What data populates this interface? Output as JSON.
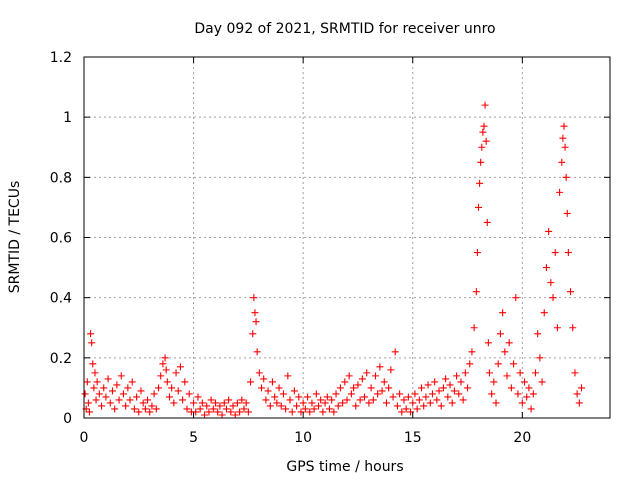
{
  "chart_data": {
    "type": "scatter",
    "title": "Day 092 of 2021, SRMTID for receiver unro",
    "xlabel": "GPS time / hours",
    "ylabel": "SRMTID / TECUs",
    "xlim": [
      0,
      24
    ],
    "ylim": [
      0,
      1.2
    ],
    "x_ticks": [
      0,
      5,
      10,
      15,
      20
    ],
    "x_tick_labels": [
      "0",
      "5",
      "10",
      "15",
      "20"
    ],
    "y_ticks": [
      0,
      0.2,
      0.4,
      0.6,
      0.8,
      1.0,
      1.2
    ],
    "y_tick_labels": [
      "0",
      "0.2",
      "0.4",
      "0.6",
      "0.8",
      "1",
      "1.2"
    ],
    "grid": true,
    "marker": "+",
    "marker_color": "#ff0000",
    "series": [
      {
        "name": "SRMTID",
        "points": [
          [
            0.05,
            0.08
          ],
          [
            0.1,
            0.03
          ],
          [
            0.15,
            0.12
          ],
          [
            0.2,
            0.05
          ],
          [
            0.25,
            0.02
          ],
          [
            0.3,
            0.28
          ],
          [
            0.35,
            0.25
          ],
          [
            0.4,
            0.18
          ],
          [
            0.45,
            0.1
          ],
          [
            0.5,
            0.15
          ],
          [
            0.55,
            0.06
          ],
          [
            0.6,
            0.12
          ],
          [
            0.7,
            0.08
          ],
          [
            0.8,
            0.04
          ],
          [
            0.9,
            0.1
          ],
          [
            1.0,
            0.07
          ],
          [
            1.1,
            0.13
          ],
          [
            1.2,
            0.05
          ],
          [
            1.3,
            0.09
          ],
          [
            1.4,
            0.03
          ],
          [
            1.5,
            0.11
          ],
          [
            1.6,
            0.06
          ],
          [
            1.7,
            0.14
          ],
          [
            1.8,
            0.08
          ],
          [
            1.9,
            0.04
          ],
          [
            2.0,
            0.1
          ],
          [
            2.1,
            0.06
          ],
          [
            2.2,
            0.12
          ],
          [
            2.3,
            0.03
          ],
          [
            2.4,
            0.07
          ],
          [
            2.5,
            0.02
          ],
          [
            2.6,
            0.09
          ],
          [
            2.7,
            0.05
          ],
          [
            2.8,
            0.03
          ],
          [
            2.9,
            0.06
          ],
          [
            3.0,
            0.02
          ],
          [
            3.1,
            0.04
          ],
          [
            3.2,
            0.08
          ],
          [
            3.3,
            0.03
          ],
          [
            3.4,
            0.1
          ],
          [
            3.5,
            0.14
          ],
          [
            3.6,
            0.18
          ],
          [
            3.7,
            0.2
          ],
          [
            3.75,
            0.16
          ],
          [
            3.8,
            0.12
          ],
          [
            3.9,
            0.07
          ],
          [
            4.0,
            0.1
          ],
          [
            4.1,
            0.05
          ],
          [
            4.2,
            0.15
          ],
          [
            4.3,
            0.09
          ],
          [
            4.4,
            0.17
          ],
          [
            4.5,
            0.06
          ],
          [
            4.6,
            0.12
          ],
          [
            4.7,
            0.03
          ],
          [
            4.8,
            0.08
          ],
          [
            4.9,
            0.02
          ],
          [
            5.0,
            0.05
          ],
          [
            5.1,
            0.02
          ],
          [
            5.2,
            0.07
          ],
          [
            5.3,
            0.03
          ],
          [
            5.4,
            0.05
          ],
          [
            5.5,
            0.01
          ],
          [
            5.6,
            0.04
          ],
          [
            5.7,
            0.02
          ],
          [
            5.8,
            0.06
          ],
          [
            5.9,
            0.03
          ],
          [
            6.0,
            0.05
          ],
          [
            6.1,
            0.02
          ],
          [
            6.2,
            0.04
          ],
          [
            6.3,
            0.01
          ],
          [
            6.4,
            0.05
          ],
          [
            6.5,
            0.03
          ],
          [
            6.6,
            0.06
          ],
          [
            6.7,
            0.02
          ],
          [
            6.8,
            0.04
          ],
          [
            6.9,
            0.01
          ],
          [
            7.0,
            0.05
          ],
          [
            7.1,
            0.02
          ],
          [
            7.2,
            0.06
          ],
          [
            7.3,
            0.03
          ],
          [
            7.4,
            0.05
          ],
          [
            7.5,
            0.02
          ],
          [
            7.6,
            0.12
          ],
          [
            7.7,
            0.28
          ],
          [
            7.75,
            0.4
          ],
          [
            7.8,
            0.35
          ],
          [
            7.85,
            0.32
          ],
          [
            7.9,
            0.22
          ],
          [
            8.0,
            0.15
          ],
          [
            8.1,
            0.1
          ],
          [
            8.2,
            0.13
          ],
          [
            8.3,
            0.06
          ],
          [
            8.4,
            0.09
          ],
          [
            8.5,
            0.04
          ],
          [
            8.6,
            0.12
          ],
          [
            8.7,
            0.07
          ],
          [
            8.8,
            0.05
          ],
          [
            8.9,
            0.1
          ],
          [
            9.0,
            0.04
          ],
          [
            9.1,
            0.08
          ],
          [
            9.2,
            0.03
          ],
          [
            9.3,
            0.14
          ],
          [
            9.4,
            0.06
          ],
          [
            9.5,
            0.02
          ],
          [
            9.6,
            0.09
          ],
          [
            9.7,
            0.04
          ],
          [
            9.8,
            0.07
          ],
          [
            9.9,
            0.02
          ],
          [
            10.0,
            0.05
          ],
          [
            10.1,
            0.03
          ],
          [
            10.2,
            0.07
          ],
          [
            10.3,
            0.02
          ],
          [
            10.4,
            0.05
          ],
          [
            10.5,
            0.03
          ],
          [
            10.6,
            0.08
          ],
          [
            10.7,
            0.04
          ],
          [
            10.8,
            0.06
          ],
          [
            10.9,
            0.02
          ],
          [
            11.0,
            0.05
          ],
          [
            11.1,
            0.07
          ],
          [
            11.2,
            0.03
          ],
          [
            11.3,
            0.06
          ],
          [
            11.4,
            0.02
          ],
          [
            11.5,
            0.08
          ],
          [
            11.6,
            0.04
          ],
          [
            11.7,
            0.1
          ],
          [
            11.8,
            0.05
          ],
          [
            11.9,
            0.12
          ],
          [
            12.0,
            0.06
          ],
          [
            12.1,
            0.14
          ],
          [
            12.2,
            0.08
          ],
          [
            12.3,
            0.1
          ],
          [
            12.4,
            0.04
          ],
          [
            12.5,
            0.11
          ],
          [
            12.6,
            0.06
          ],
          [
            12.7,
            0.13
          ],
          [
            12.8,
            0.07
          ],
          [
            12.9,
            0.15
          ],
          [
            13.0,
            0.05
          ],
          [
            13.1,
            0.1
          ],
          [
            13.2,
            0.06
          ],
          [
            13.3,
            0.14
          ],
          [
            13.4,
            0.08
          ],
          [
            13.5,
            0.17
          ],
          [
            13.6,
            0.09
          ],
          [
            13.7,
            0.12
          ],
          [
            13.8,
            0.05
          ],
          [
            13.9,
            0.1
          ],
          [
            14.0,
            0.16
          ],
          [
            14.1,
            0.07
          ],
          [
            14.2,
            0.22
          ],
          [
            14.3,
            0.04
          ],
          [
            14.4,
            0.08
          ],
          [
            14.5,
            0.02
          ],
          [
            14.6,
            0.06
          ],
          [
            14.7,
            0.03
          ],
          [
            14.8,
            0.07
          ],
          [
            14.9,
            0.02
          ],
          [
            15.0,
            0.05
          ],
          [
            15.1,
            0.08
          ],
          [
            15.2,
            0.03
          ],
          [
            15.3,
            0.06
          ],
          [
            15.4,
            0.1
          ],
          [
            15.5,
            0.04
          ],
          [
            15.6,
            0.07
          ],
          [
            15.7,
            0.11
          ],
          [
            15.8,
            0.05
          ],
          [
            15.9,
            0.08
          ],
          [
            16.0,
            0.12
          ],
          [
            16.1,
            0.06
          ],
          [
            16.2,
            0.09
          ],
          [
            16.3,
            0.04
          ],
          [
            16.4,
            0.1
          ],
          [
            16.5,
            0.13
          ],
          [
            16.6,
            0.07
          ],
          [
            16.7,
            0.11
          ],
          [
            16.8,
            0.05
          ],
          [
            16.9,
            0.09
          ],
          [
            17.0,
            0.14
          ],
          [
            17.1,
            0.08
          ],
          [
            17.2,
            0.12
          ],
          [
            17.3,
            0.06
          ],
          [
            17.4,
            0.15
          ],
          [
            17.5,
            0.1
          ],
          [
            17.6,
            0.18
          ],
          [
            17.7,
            0.22
          ],
          [
            17.8,
            0.3
          ],
          [
            17.9,
            0.42
          ],
          [
            17.95,
            0.55
          ],
          [
            18.0,
            0.7
          ],
          [
            18.05,
            0.78
          ],
          [
            18.1,
            0.85
          ],
          [
            18.15,
            0.9
          ],
          [
            18.2,
            0.95
          ],
          [
            18.25,
            0.97
          ],
          [
            18.3,
            1.04
          ],
          [
            18.35,
            0.92
          ],
          [
            18.4,
            0.65
          ],
          [
            18.45,
            0.25
          ],
          [
            18.5,
            0.15
          ],
          [
            18.6,
            0.08
          ],
          [
            18.7,
            0.12
          ],
          [
            18.8,
            0.05
          ],
          [
            18.9,
            0.18
          ],
          [
            19.0,
            0.28
          ],
          [
            19.1,
            0.35
          ],
          [
            19.2,
            0.22
          ],
          [
            19.3,
            0.14
          ],
          [
            19.4,
            0.25
          ],
          [
            19.5,
            0.1
          ],
          [
            19.6,
            0.18
          ],
          [
            19.7,
            0.4
          ],
          [
            19.8,
            0.08
          ],
          [
            19.9,
            0.15
          ],
          [
            20.0,
            0.05
          ],
          [
            20.1,
            0.12
          ],
          [
            20.2,
            0.07
          ],
          [
            20.3,
            0.1
          ],
          [
            20.4,
            0.03
          ],
          [
            20.5,
            0.08
          ],
          [
            20.6,
            0.15
          ],
          [
            20.7,
            0.28
          ],
          [
            20.8,
            0.2
          ],
          [
            20.9,
            0.12
          ],
          [
            21.0,
            0.35
          ],
          [
            21.1,
            0.5
          ],
          [
            21.2,
            0.62
          ],
          [
            21.3,
            0.45
          ],
          [
            21.4,
            0.4
          ],
          [
            21.5,
            0.55
          ],
          [
            21.6,
            0.3
          ],
          [
            21.7,
            0.75
          ],
          [
            21.8,
            0.85
          ],
          [
            21.85,
            0.93
          ],
          [
            21.9,
            0.97
          ],
          [
            21.95,
            0.9
          ],
          [
            22.0,
            0.8
          ],
          [
            22.05,
            0.68
          ],
          [
            22.1,
            0.55
          ],
          [
            22.2,
            0.42
          ],
          [
            22.3,
            0.3
          ],
          [
            22.4,
            0.15
          ],
          [
            22.5,
            0.08
          ],
          [
            22.6,
            0.05
          ],
          [
            22.7,
            0.1
          ]
        ]
      }
    ]
  }
}
